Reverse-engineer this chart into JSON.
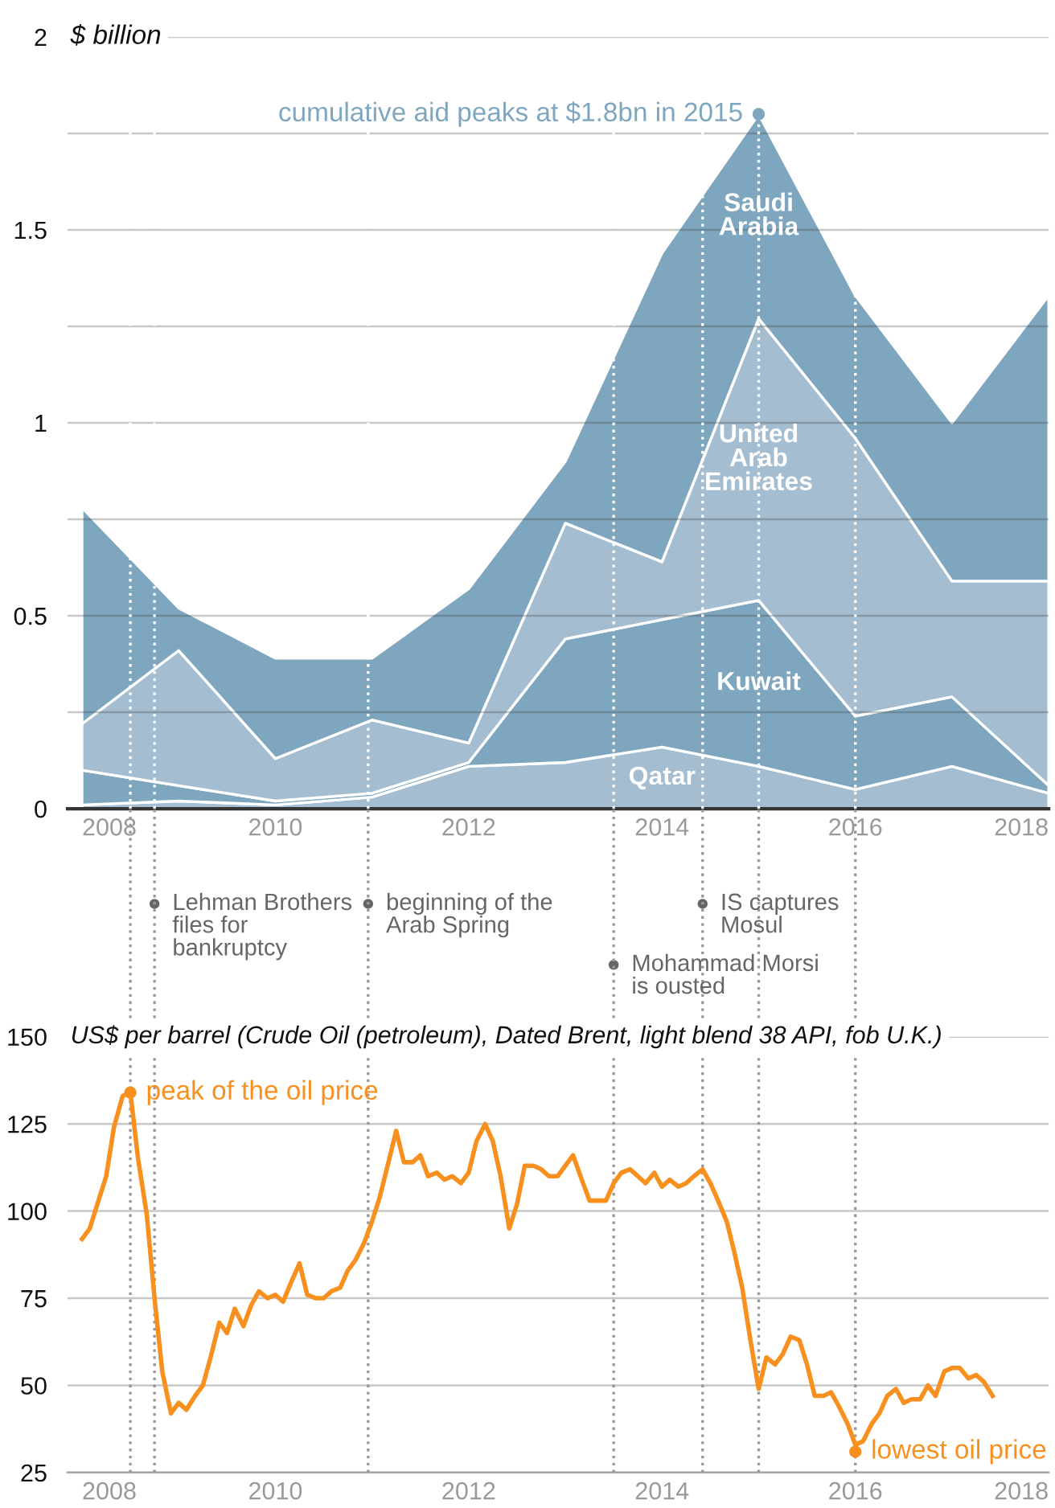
{
  "chart_data": [
    {
      "type": "area",
      "stacked": true,
      "ylabel": "$ billion",
      "grid": "y",
      "x": [
        2008,
        2009,
        2010,
        2011,
        2012,
        2013,
        2014,
        2015,
        2016,
        2017,
        2018
      ],
      "series": [
        {
          "name": "Qatar",
          "color": "#a4bdd0",
          "values": [
            0.01,
            0.02,
            0.01,
            0.03,
            0.11,
            0.12,
            0.16,
            0.11,
            0.05,
            0.11,
            0.04
          ]
        },
        {
          "name": "Kuwait",
          "color": "#7ea6be",
          "values": [
            0.09,
            0.04,
            0.01,
            0.01,
            0.01,
            0.32,
            0.33,
            0.43,
            0.19,
            0.18,
            0.02
          ]
        },
        {
          "name": "United Arab Emirates",
          "color": "#a4bdd0",
          "values": [
            0.12,
            0.35,
            0.11,
            0.19,
            0.05,
            0.3,
            0.15,
            0.73,
            0.72,
            0.3,
            0.53
          ]
        },
        {
          "name": "Saudi Arabia",
          "color": "#7ea6be",
          "values": [
            0.56,
            0.11,
            0.26,
            0.16,
            0.4,
            0.16,
            0.8,
            0.53,
            0.37,
            0.41,
            0.74
          ]
        }
      ],
      "xlim": [
        2007.85,
        2018
      ],
      "xticks": [
        2008,
        2010,
        2012,
        2014,
        2016,
        2018
      ],
      "ylim": [
        0,
        2
      ],
      "yticks": [
        0,
        {
          "value": 0.25,
          "label": null
        },
        0.5,
        {
          "value": 0.75,
          "label": null
        },
        1,
        {
          "value": 1.25,
          "label": null
        },
        1.5,
        {
          "value": 1.75,
          "label": null
        },
        2
      ],
      "annotations": [
        {
          "text": "cumulative aid peaks at $1.8bn in 2015",
          "x": 2015,
          "y": 1.8
        }
      ],
      "ref_lines": [
        {
          "axis": "x",
          "value": 2008.5,
          "color": "#ffffff",
          "line_style": "dotted"
        },
        {
          "axis": "x",
          "value": 2008.75,
          "color": "#ffffff",
          "line_style": "dotted"
        },
        {
          "axis": "x",
          "value": 2010.96,
          "color": "#ffffff",
          "line_style": "dotted"
        },
        {
          "axis": "x",
          "value": 2013.5,
          "color": "#ffffff",
          "line_style": "dotted"
        },
        {
          "axis": "x",
          "value": 2014.42,
          "color": "#ffffff",
          "line_style": "dotted"
        },
        {
          "axis": "x",
          "value": 2015,
          "color": "#ffffff",
          "line_style": "dotted"
        },
        {
          "axis": "x",
          "value": 2016,
          "color": "#ffffff",
          "line_style": "dotted"
        }
      ]
    },
    {
      "type": "line",
      "ylabel": "US$ per barrel (Crude Oil (petroleum), Dated Brent, light blend 38 API, fob U.K.)",
      "grid": "y",
      "x": [
        2008.0,
        2008.08,
        2008.17,
        2008.25,
        2008.33,
        2008.42,
        2008.5,
        2008.58,
        2008.67,
        2008.75,
        2008.83,
        2008.92,
        2009.0,
        2009.08,
        2009.17,
        2009.25,
        2009.33,
        2009.42,
        2009.5,
        2009.58,
        2009.67,
        2009.75,
        2009.83,
        2009.92,
        2010.0,
        2010.08,
        2010.17,
        2010.25,
        2010.33,
        2010.42,
        2010.5,
        2010.58,
        2010.67,
        2010.75,
        2010.83,
        2010.92,
        2011.0,
        2011.08,
        2011.17,
        2011.25,
        2011.33,
        2011.42,
        2011.5,
        2011.58,
        2011.67,
        2011.75,
        2011.83,
        2011.92,
        2012.0,
        2012.08,
        2012.17,
        2012.25,
        2012.33,
        2012.42,
        2012.5,
        2012.58,
        2012.67,
        2012.75,
        2012.83,
        2012.92,
        2013.0,
        2013.08,
        2013.17,
        2013.25,
        2013.33,
        2013.42,
        2013.5,
        2013.58,
        2013.67,
        2013.75,
        2013.83,
        2013.92,
        2014.0,
        2014.08,
        2014.17,
        2014.25,
        2014.33,
        2014.42,
        2014.5,
        2014.58,
        2014.67,
        2014.75,
        2014.83,
        2014.92,
        2015.0,
        2015.08,
        2015.17,
        2015.25,
        2015.33,
        2015.42,
        2015.5,
        2015.58,
        2015.67,
        2015.75,
        2015.83,
        2015.92,
        2016.0,
        2016.08,
        2016.17,
        2016.25,
        2016.33,
        2016.42,
        2016.5,
        2016.58,
        2016.67,
        2016.75,
        2016.83,
        2016.92,
        2017.0,
        2017.08,
        2017.17,
        2017.25,
        2017.33,
        2017.42
      ],
      "series": [
        {
          "color": "#f7901e",
          "values": [
            92,
            95,
            103,
            110,
            124,
            133,
            134,
            115,
            99,
            75,
            54,
            42,
            45,
            43,
            47,
            50,
            58,
            68,
            65,
            72,
            67,
            73,
            77,
            75,
            76,
            74,
            80,
            85,
            76,
            75,
            75,
            77,
            78,
            83,
            86,
            91,
            97,
            104,
            114,
            123,
            114,
            114,
            116,
            110,
            111,
            109,
            110,
            108,
            111,
            120,
            125,
            120,
            110,
            95,
            102,
            113,
            113,
            112,
            110,
            110,
            113,
            116,
            109,
            103,
            103,
            103,
            108,
            111,
            112,
            110,
            108,
            111,
            107,
            109,
            107,
            108,
            110,
            112,
            108,
            103,
            97,
            88,
            78,
            62,
            49,
            58,
            56,
            59,
            64,
            63,
            56,
            47,
            47,
            48,
            44,
            39,
            33,
            34,
            39,
            42,
            47,
            49,
            45,
            46,
            46,
            50,
            47,
            54,
            55,
            55,
            52,
            53,
            51,
            47
          ]
        }
      ],
      "xlim": [
        2007.85,
        2018
      ],
      "xticks": [
        2008,
        2010,
        2012,
        2014,
        2016,
        2018
      ],
      "ylim": [
        25,
        150
      ],
      "yticks": [
        25,
        50,
        75,
        100,
        125,
        150
      ],
      "annotations": [
        {
          "text": "peak of the oil price",
          "x": 2008.5,
          "y": 134
        },
        {
          "text": "lowest oil price",
          "x": 2016,
          "y": 31
        }
      ],
      "ref_lines": [
        {
          "axis": "x",
          "value": 2008.5,
          "color": "#999999",
          "line_style": "dotted"
        },
        {
          "axis": "x",
          "value": 2008.75,
          "color": "#999999",
          "line_style": "dotted",
          "label": "Lehman Brothers files for bankruptcy"
        },
        {
          "axis": "x",
          "value": 2010.96,
          "color": "#999999",
          "line_style": "dotted",
          "label": "beginning of the Arab Spring"
        },
        {
          "axis": "x",
          "value": 2013.5,
          "color": "#999999",
          "line_style": "dotted",
          "label": "Mohammad Morsi is ousted"
        },
        {
          "axis": "x",
          "value": 2014.42,
          "color": "#999999",
          "line_style": "dotted",
          "label": "IS captures Mosul"
        },
        {
          "axis": "x",
          "value": 2015,
          "color": "#999999",
          "line_style": "dotted"
        },
        {
          "axis": "x",
          "value": 2016,
          "color": "#999999",
          "line_style": "dotted"
        }
      ]
    }
  ]
}
